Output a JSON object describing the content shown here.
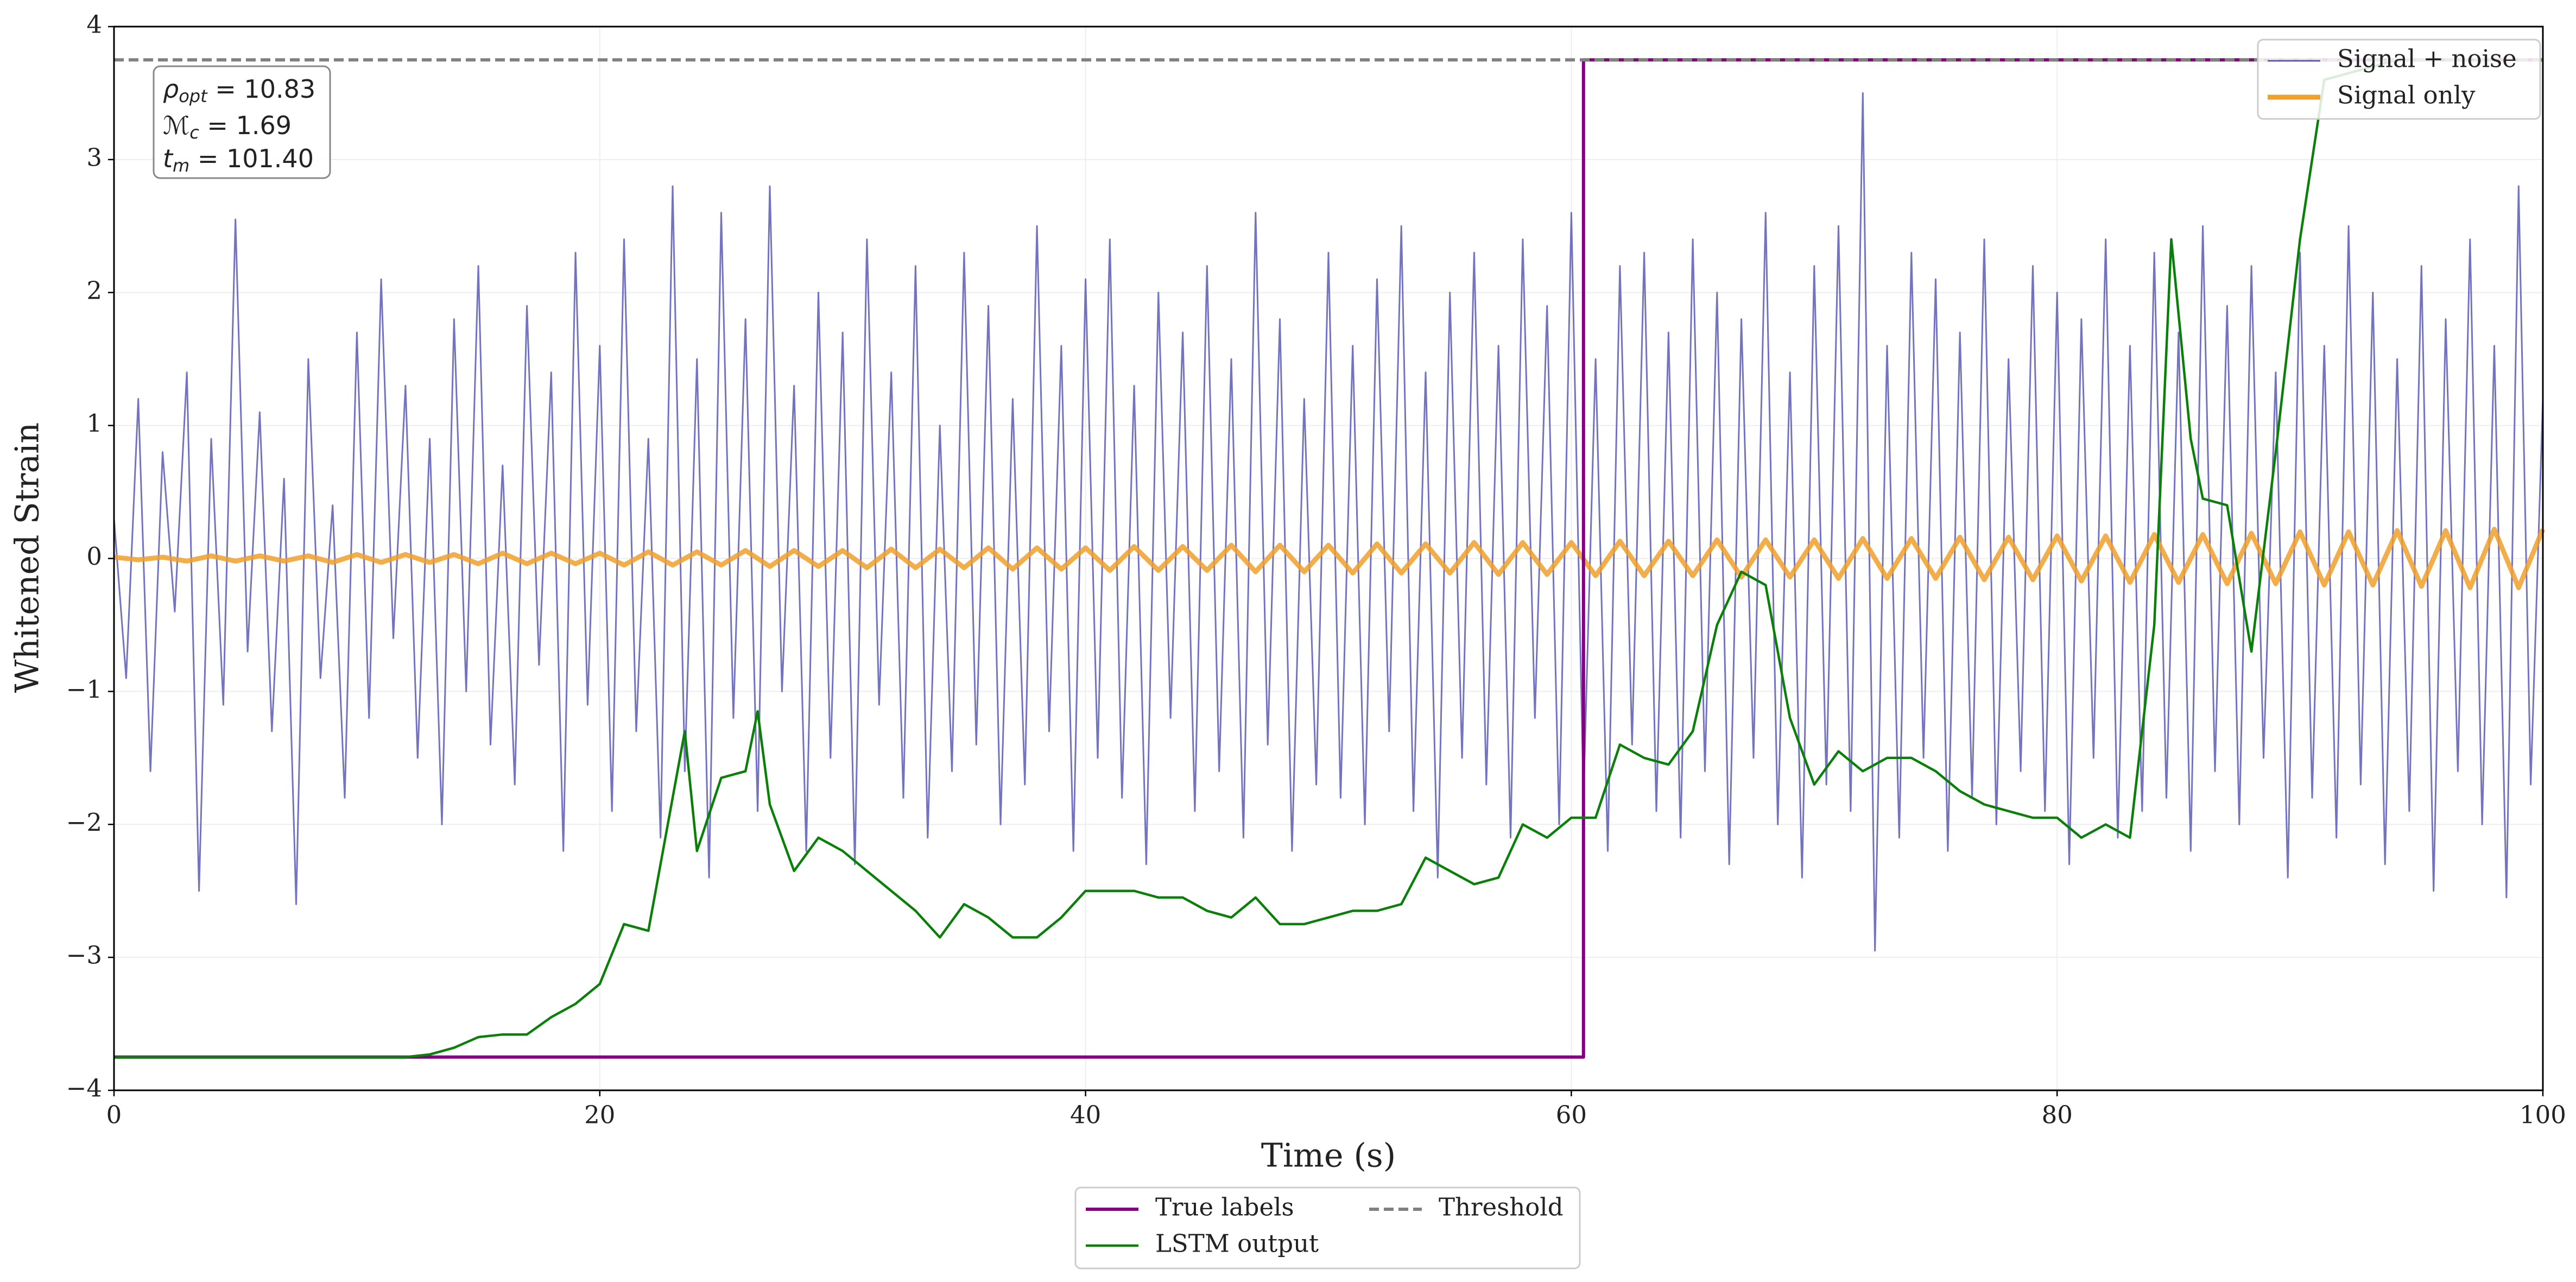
{
  "chart_data": {
    "type": "line",
    "xlabel": "Time (s)",
    "ylabel": "Whitened Strain",
    "xlim": [
      0,
      100
    ],
    "ylim": [
      -4,
      4
    ],
    "xticks": [
      0,
      20,
      40,
      60,
      80,
      100
    ],
    "yticks": [
      {
        "value": -4,
        "label": "−4"
      },
      {
        "value": -3,
        "label": "−3"
      },
      {
        "value": -2,
        "label": "−2"
      },
      {
        "value": -1,
        "label": "−1"
      },
      0,
      1,
      2,
      3,
      4
    ],
    "grid": true,
    "legend": "upper right",
    "legend2": "lower center",
    "annotation": [
      {
        "symbol": "ρ",
        "sub": "opt",
        "text": " = 10.83"
      },
      {
        "symbol": "ℳ",
        "sub": "c",
        "text": " = 1.69"
      },
      {
        "symbol": "t",
        "sub": "m",
        "text": " = 101.40"
      }
    ],
    "series": [
      {
        "name": "Signal + noise",
        "color": "#5b5bb5",
        "width": 1,
        "x": [
          0,
          0.5,
          1,
          1.5,
          2,
          2.5,
          3,
          3.5,
          4,
          4.5,
          5,
          5.5,
          6,
          6.5,
          7,
          7.5,
          8,
          8.5,
          9,
          9.5,
          10,
          10.5,
          11,
          11.5,
          12,
          12.5,
          13,
          13.5,
          14,
          14.5,
          15,
          15.5,
          16,
          16.5,
          17,
          17.5,
          18,
          18.5,
          19,
          19.5,
          20,
          20.5,
          21,
          21.5,
          22,
          22.5,
          23,
          23.5,
          24,
          24.5,
          25,
          25.5,
          26,
          26.5,
          27,
          27.5,
          28,
          28.5,
          29,
          29.5,
          30,
          30.5,
          31,
          31.5,
          32,
          32.5,
          33,
          33.5,
          34,
          34.5,
          35,
          35.5,
          36,
          36.5,
          37,
          37.5,
          38,
          38.5,
          39,
          39.5,
          40,
          40.5,
          41,
          41.5,
          42,
          42.5,
          43,
          43.5,
          44,
          44.5,
          45,
          45.5,
          46,
          46.5,
          47,
          47.5,
          48,
          48.5,
          49,
          49.5,
          50,
          50.5,
          51,
          51.5,
          52,
          52.5,
          53,
          53.5,
          54,
          54.5,
          55,
          55.5,
          56,
          56.5,
          57,
          57.5,
          58,
          58.5,
          59,
          59.5,
          60,
          60.5,
          61,
          61.5,
          62,
          62.5,
          63,
          63.5,
          64,
          64.5,
          65,
          65.5,
          66,
          66.5,
          67,
          67.5,
          68,
          68.5,
          69,
          69.5,
          70,
          70.5,
          71,
          71.5,
          72,
          72.5,
          73,
          73.5,
          74,
          74.5,
          75,
          75.5,
          76,
          76.5,
          77,
          77.5,
          78,
          78.5,
          79,
          79.5,
          80,
          80.5,
          81,
          81.5,
          82,
          82.5,
          83,
          83.5,
          84,
          84.5,
          85,
          85.5,
          86,
          86.5,
          87,
          87.5,
          88,
          88.5,
          89,
          89.5,
          90,
          90.5,
          91,
          91.5,
          92,
          92.5,
          93,
          93.5,
          94,
          94.5,
          95,
          95.5,
          96,
          96.5,
          97,
          97.5,
          98,
          98.5,
          99,
          99.5,
          100
        ],
        "values": [
          0.3,
          -0.9,
          1.2,
          -1.6,
          0.8,
          -0.4,
          1.4,
          -2.5,
          0.9,
          -1.1,
          2.55,
          -0.7,
          1.1,
          -1.3,
          0.6,
          -2.6,
          1.5,
          -0.9,
          0.4,
          -1.8,
          1.7,
          -1.2,
          2.1,
          -0.6,
          1.3,
          -1.5,
          0.9,
          -2.0,
          1.8,
          -1.0,
          2.2,
          -1.4,
          0.7,
          -1.7,
          1.9,
          -0.8,
          1.4,
          -2.2,
          2.3,
          -1.1,
          1.6,
          -1.9,
          2.4,
          -1.3,
          0.9,
          -2.1,
          2.8,
          -1.6,
          1.5,
          -2.4,
          2.6,
          -1.2,
          1.8,
          -1.9,
          2.8,
          -1.0,
          1.3,
          -2.2,
          2.0,
          -1.5,
          1.7,
          -2.3,
          2.4,
          -1.1,
          1.4,
          -1.8,
          2.2,
          -2.1,
          1.0,
          -1.6,
          2.3,
          -1.4,
          1.9,
          -2.0,
          1.2,
          -1.7,
          2.5,
          -1.3,
          1.6,
          -2.2,
          2.1,
          -1.5,
          2.4,
          -1.8,
          1.3,
          -2.3,
          2.0,
          -1.2,
          1.7,
          -1.9,
          2.2,
          -1.6,
          1.5,
          -2.1,
          2.6,
          -1.4,
          1.8,
          -2.2,
          1.2,
          -1.7,
          2.3,
          -1.8,
          1.6,
          -2.0,
          2.1,
          -1.3,
          2.5,
          -1.9,
          1.4,
          -2.4,
          2.0,
          -1.5,
          2.3,
          -1.7,
          1.6,
          -2.1,
          2.4,
          -1.2,
          1.9,
          -2.0,
          2.6,
          -1.8,
          1.5,
          -2.2,
          2.2,
          -1.4,
          2.3,
          -1.9,
          1.7,
          -2.1,
          2.4,
          -1.6,
          2.0,
          -2.3,
          1.8,
          -1.5,
          2.6,
          -2.0,
          1.4,
          -2.4,
          2.2,
          -1.7,
          2.5,
          -1.9,
          3.5,
          -2.95,
          1.6,
          -2.1,
          2.3,
          -1.5,
          2.1,
          -2.2,
          1.7,
          -1.8,
          2.4,
          -2.0,
          1.5,
          -1.6,
          2.2,
          -1.9,
          2.0,
          -2.3,
          1.8,
          -1.5,
          2.4,
          -2.1,
          1.6,
          -1.9,
          2.3,
          -1.8,
          1.7,
          -2.2,
          2.5,
          -1.6,
          1.9,
          -2.0,
          2.2,
          -1.5,
          1.4,
          -2.4,
          2.3,
          -1.8,
          1.6,
          -2.1,
          2.5,
          -1.7,
          2.0,
          -2.3,
          1.5,
          -1.9,
          2.2,
          -2.5,
          1.8,
          -1.6,
          2.4,
          -2.0,
          1.6,
          -2.55,
          2.8,
          -1.7,
          1.2
        ]
      },
      {
        "name": "Signal only",
        "color": "#f0a02c",
        "width": 3,
        "x": [
          0,
          1,
          2,
          3,
          4,
          5,
          6,
          7,
          8,
          9,
          10,
          11,
          12,
          13,
          14,
          15,
          16,
          17,
          18,
          19,
          20,
          21,
          22,
          23,
          24,
          25,
          26,
          27,
          28,
          29,
          30,
          31,
          32,
          33,
          34,
          35,
          36,
          37,
          38,
          39,
          40,
          41,
          42,
          43,
          44,
          45,
          46,
          47,
          48,
          49,
          50,
          51,
          52,
          53,
          54,
          55,
          56,
          57,
          58,
          59,
          60,
          61,
          62,
          63,
          64,
          65,
          66,
          67,
          68,
          69,
          70,
          71,
          72,
          73,
          74,
          75,
          76,
          77,
          78,
          79,
          80,
          81,
          82,
          83,
          84,
          85,
          86,
          87,
          88,
          89,
          90,
          91,
          92,
          93,
          94,
          95,
          96,
          97,
          98,
          99,
          100
        ],
        "values": [
          0.01,
          -0.01,
          0.01,
          -0.02,
          0.02,
          -0.02,
          0.02,
          -0.02,
          0.02,
          -0.03,
          0.03,
          -0.03,
          0.03,
          -0.03,
          0.03,
          -0.04,
          0.04,
          -0.04,
          0.04,
          -0.04,
          0.04,
          -0.05,
          0.05,
          -0.05,
          0.05,
          -0.05,
          0.06,
          -0.06,
          0.06,
          -0.06,
          0.06,
          -0.07,
          0.07,
          -0.07,
          0.07,
          -0.07,
          0.08,
          -0.08,
          0.08,
          -0.08,
          0.08,
          -0.09,
          0.09,
          -0.09,
          0.09,
          -0.09,
          0.1,
          -0.1,
          0.1,
          -0.1,
          0.1,
          -0.11,
          0.11,
          -0.11,
          0.11,
          -0.11,
          0.12,
          -0.12,
          0.12,
          -0.12,
          0.12,
          -0.13,
          0.13,
          -0.13,
          0.13,
          -0.13,
          0.14,
          -0.14,
          0.14,
          -0.14,
          0.14,
          -0.15,
          0.15,
          -0.15,
          0.15,
          -0.15,
          0.16,
          -0.16,
          0.16,
          -0.16,
          0.17,
          -0.17,
          0.17,
          -0.18,
          0.18,
          -0.18,
          0.18,
          -0.19,
          0.19,
          -0.19,
          0.2,
          -0.2,
          0.2,
          -0.2,
          0.21,
          -0.21,
          0.21,
          -0.22,
          0.22,
          -0.22,
          0.22
        ]
      },
      {
        "name": "True labels",
        "color": "#800080",
        "width": 2,
        "x": [
          0,
          60.5,
          60.5,
          100
        ],
        "values": [
          -3.75,
          -3.75,
          3.75,
          3.75
        ]
      },
      {
        "name": "LSTM output",
        "color": "#0a800a",
        "width": 1.5,
        "x": [
          0,
          12,
          13,
          14,
          15,
          16,
          17,
          18,
          19,
          20,
          21,
          22,
          23,
          23.5,
          24,
          25,
          26,
          26.5,
          27,
          28,
          29,
          30,
          31,
          32,
          33,
          34,
          35,
          36,
          37,
          38,
          39,
          40,
          41,
          42,
          43,
          44,
          45,
          46,
          47,
          48,
          49,
          50,
          51,
          52,
          53,
          54,
          55,
          56,
          57,
          58,
          59,
          60,
          61,
          62,
          63,
          64,
          65,
          66,
          67,
          68,
          69,
          70,
          71,
          72,
          73,
          74,
          75,
          76,
          77,
          78,
          79,
          80,
          81,
          82,
          83,
          84,
          84.7,
          85.5,
          86,
          87,
          88,
          89,
          90,
          91,
          92,
          93,
          94,
          95
        ],
        "values": [
          -3.75,
          -3.75,
          -3.73,
          -3.68,
          -3.6,
          -3.58,
          -3.58,
          -3.45,
          -3.35,
          -3.2,
          -2.75,
          -2.8,
          -1.8,
          -1.3,
          -2.2,
          -1.65,
          -1.6,
          -1.15,
          -1.85,
          -2.35,
          -2.1,
          -2.2,
          -2.35,
          -2.5,
          -2.65,
          -2.85,
          -2.6,
          -2.7,
          -2.85,
          -2.85,
          -2.7,
          -2.5,
          -2.5,
          -2.5,
          -2.55,
          -2.55,
          -2.65,
          -2.7,
          -2.55,
          -2.75,
          -2.75,
          -2.7,
          -2.65,
          -2.65,
          -2.6,
          -2.25,
          -2.35,
          -2.45,
          -2.4,
          -2.0,
          -2.1,
          -1.95,
          -1.95,
          -1.4,
          -1.5,
          -1.55,
          -1.3,
          -0.5,
          -0.1,
          -0.2,
          -1.2,
          -1.7,
          -1.45,
          -1.6,
          -1.5,
          -1.5,
          -1.6,
          -1.75,
          -1.85,
          -1.9,
          -1.95,
          -1.95,
          -2.1,
          -2.0,
          -2.1,
          -0.5,
          2.4,
          0.9,
          0.45,
          0.4,
          -0.7,
          0.8,
          2.4,
          3.6,
          3.65,
          3.7,
          3.75,
          3.75
        ]
      },
      {
        "name": "Threshold",
        "color": "#808080",
        "width": 2,
        "dash": true,
        "x": [
          0,
          100
        ],
        "values": [
          3.75,
          3.75
        ]
      }
    ]
  }
}
